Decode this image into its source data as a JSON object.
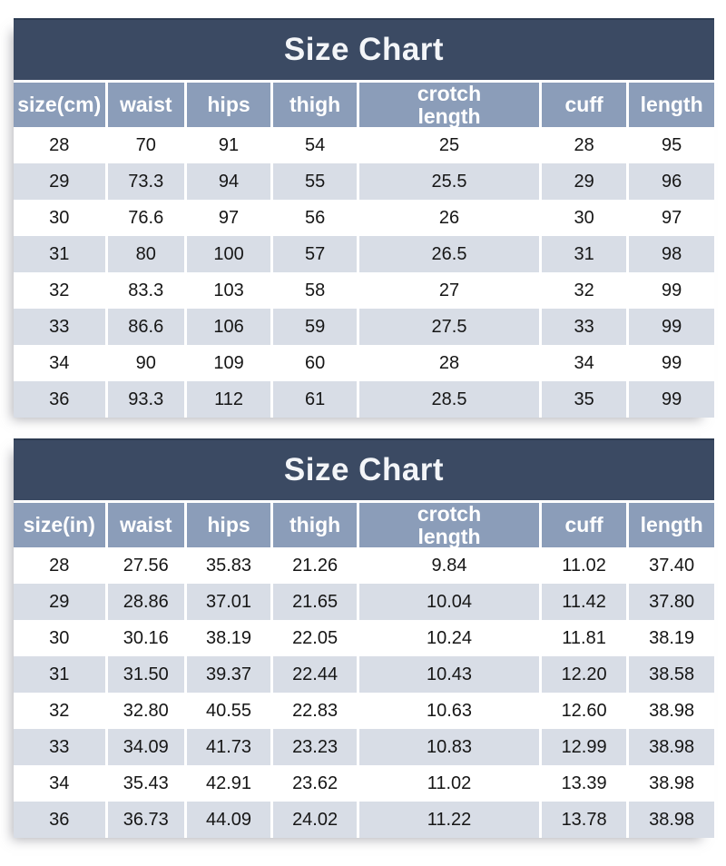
{
  "colors": {
    "title_bar_bg": "#3b4a63",
    "header_row_bg": "#8b9db9",
    "alt_row_bg": "#d8dde6",
    "row_bg": "#ffffff",
    "title_text": "#f3f5f8",
    "header_text": "#ffffff",
    "body_text": "#161616"
  },
  "chart_data": [
    {
      "type": "table",
      "title": "Size Chart",
      "columns": [
        "size(cm)",
        "waist",
        "hips",
        "thigh",
        "crotch length",
        "cuff",
        "length"
      ],
      "rows": [
        [
          "28",
          "70",
          "91",
          "54",
          "25",
          "28",
          "95"
        ],
        [
          "29",
          "73.3",
          "94",
          "55",
          "25.5",
          "29",
          "96"
        ],
        [
          "30",
          "76.6",
          "97",
          "56",
          "26",
          "30",
          "97"
        ],
        [
          "31",
          "80",
          "100",
          "57",
          "26.5",
          "31",
          "98"
        ],
        [
          "32",
          "83.3",
          "103",
          "58",
          "27",
          "32",
          "99"
        ],
        [
          "33",
          "86.6",
          "106",
          "59",
          "27.5",
          "33",
          "99"
        ],
        [
          "34",
          "90",
          "109",
          "60",
          "28",
          "34",
          "99"
        ],
        [
          "36",
          "93.3",
          "112",
          "61",
          "28.5",
          "35",
          "99"
        ]
      ]
    },
    {
      "type": "table",
      "title": "Size Chart",
      "columns": [
        "size(in)",
        "waist",
        "hips",
        "thigh",
        "crotch length",
        "cuff",
        "length"
      ],
      "rows": [
        [
          "28",
          "27.56",
          "35.83",
          "21.26",
          "9.84",
          "11.02",
          "37.40"
        ],
        [
          "29",
          "28.86",
          "37.01",
          "21.65",
          "10.04",
          "11.42",
          "37.80"
        ],
        [
          "30",
          "30.16",
          "38.19",
          "22.05",
          "10.24",
          "11.81",
          "38.19"
        ],
        [
          "31",
          "31.50",
          "39.37",
          "22.44",
          "10.43",
          "12.20",
          "38.58"
        ],
        [
          "32",
          "32.80",
          "40.55",
          "22.83",
          "10.63",
          "12.60",
          "38.98"
        ],
        [
          "33",
          "34.09",
          "41.73",
          "23.23",
          "10.83",
          "12.99",
          "38.98"
        ],
        [
          "34",
          "35.43",
          "42.91",
          "23.62",
          "11.02",
          "13.39",
          "38.98"
        ],
        [
          "36",
          "36.73",
          "44.09",
          "24.02",
          "11.22",
          "13.78",
          "38.98"
        ]
      ]
    }
  ]
}
